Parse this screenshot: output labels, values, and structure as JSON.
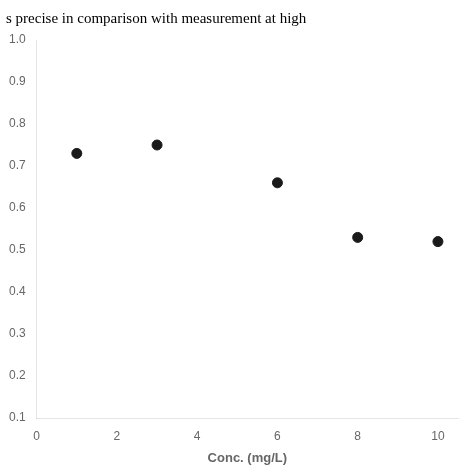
{
  "chart_data": {
    "type": "scatter",
    "title": "s precise in comparison with measurement at high",
    "xlabel": "Conc. (mg/L)",
    "x": [
      1,
      3,
      6,
      8,
      10
    ],
    "values": [
      0.73,
      0.75,
      0.66,
      0.53,
      0.52
    ],
    "color": "#1a1a1a",
    "xlim": [
      0,
      10.5
    ],
    "ylim": [
      0.1,
      1.0
    ],
    "xticks": [
      0,
      2,
      4,
      6,
      8,
      10
    ],
    "yticks": [
      0.1,
      0.2,
      0.3,
      0.4,
      0.5,
      0.6,
      0.7,
      0.8,
      0.9,
      {
        "value": 1.0,
        "label": "1.0"
      }
    ],
    "grid": false
  }
}
